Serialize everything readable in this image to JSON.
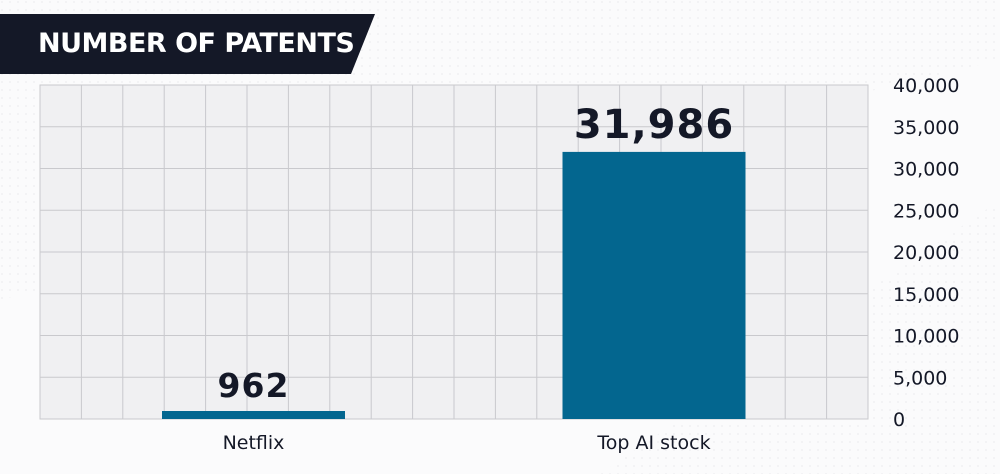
{
  "chart_data": {
    "type": "bar",
    "title": "NUMBER OF PATENTS",
    "categories": [
      "Netflix",
      "Top AI stock"
    ],
    "values": [
      962,
      31986
    ],
    "value_labels": [
      "962",
      "31,986"
    ],
    "ylim": [
      0,
      40000
    ],
    "yticks": [
      0,
      5000,
      10000,
      15000,
      20000,
      25000,
      30000,
      35000,
      40000
    ],
    "ytick_labels": [
      "0",
      "5,000",
      "10,000",
      "15,000",
      "20,000",
      "25,000",
      "30,000",
      "35,000",
      "40,000"
    ],
    "y_axis_side": "right",
    "grid": true,
    "xlabel": "",
    "ylabel": ""
  },
  "colors": {
    "bar": "#03668f",
    "banner": "#141827",
    "plot_background": "#f0f0f2",
    "grid": "#c9c9cd",
    "text": "#141827"
  }
}
